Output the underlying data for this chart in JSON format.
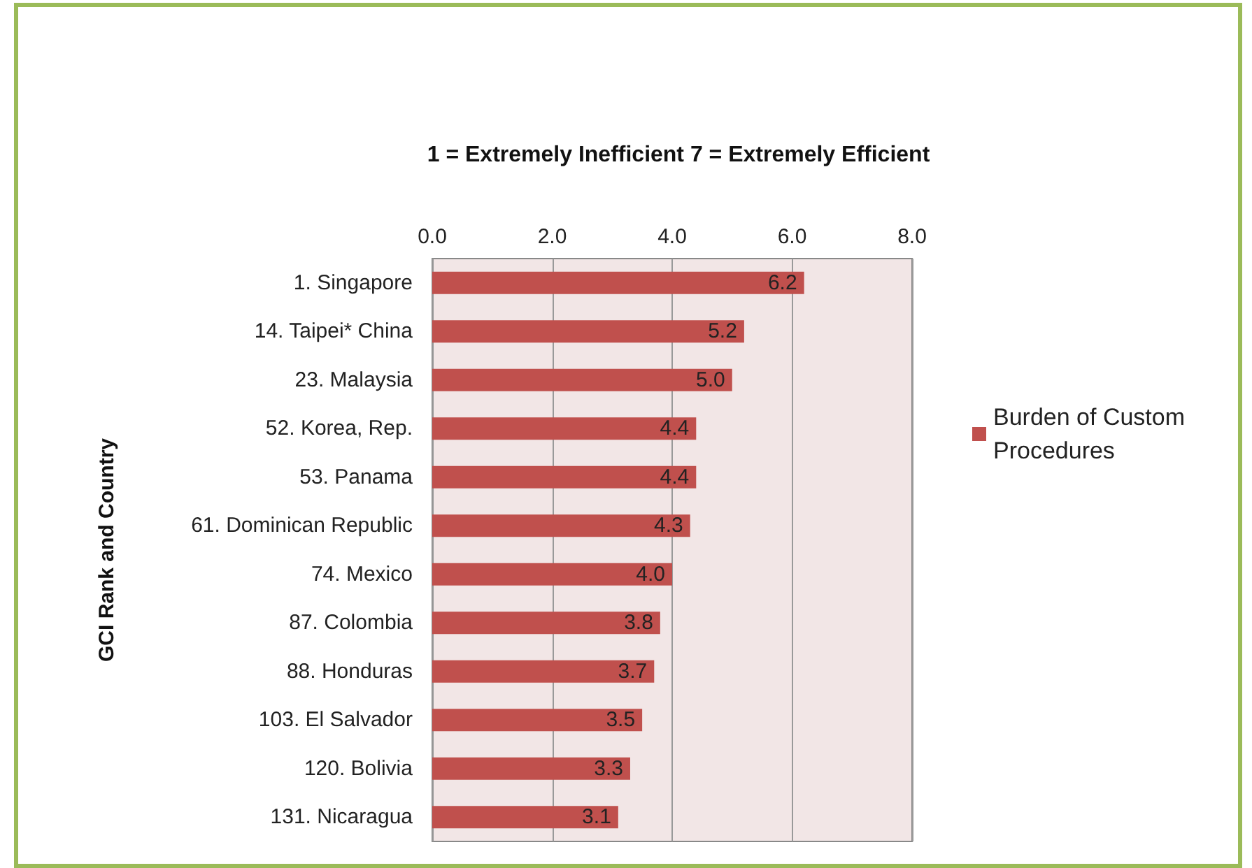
{
  "chart_data": {
    "type": "bar",
    "orientation": "horizontal",
    "title": "1 = Extremely Inefficient 7 = Extremely Efficient",
    "ylabel": "GCI Rank and Country",
    "categories": [
      "1. Singapore",
      "14. Taipei* China",
      "23. Malaysia",
      "52. Korea, Rep.",
      "53. Panama",
      "61. Dominican Republic",
      "74. Mexico",
      "87. Colombia",
      "88. Honduras",
      "103. El Salvador",
      "120. Bolivia",
      "131. Nicaragua"
    ],
    "series": [
      {
        "name": "Burden of Custom Procedures",
        "color": "#c0504d",
        "values": [
          6.2,
          5.2,
          5.0,
          4.4,
          4.4,
          4.3,
          4.0,
          3.8,
          3.7,
          3.5,
          3.3,
          3.1
        ],
        "value_labels": [
          "6.2",
          "5.2",
          "5.0",
          "4.4",
          "4.4",
          "4.3",
          "4.0",
          "3.8",
          "3.7",
          "3.5",
          "3.3",
          "3.1"
        ]
      }
    ],
    "xlim": [
      0,
      8
    ],
    "xticks": [
      {
        "value": 0,
        "label": "0.0"
      },
      {
        "value": 2,
        "label": "2.0"
      },
      {
        "value": 4,
        "label": "4.0"
      },
      {
        "value": 6,
        "label": "6.0"
      },
      {
        "value": 8,
        "label": "8.0"
      }
    ],
    "grid": "x",
    "legend": "right"
  }
}
